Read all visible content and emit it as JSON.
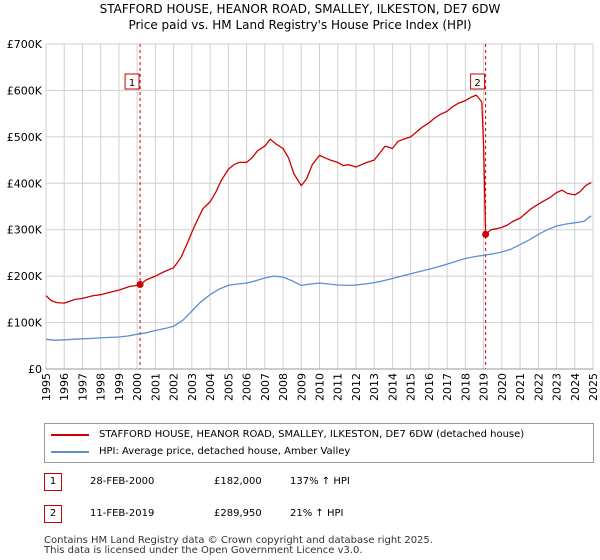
{
  "title_line1": "STAFFORD HOUSE, HEANOR ROAD, SMALLEY, ILKESTON, DE7 6DW",
  "title_line2": "Price paid vs. HM Land Registry's House Price Index (HPI)",
  "colors": {
    "property": "#cc0000",
    "hpi": "#5b8fd1",
    "grid": "#d0d0d0",
    "marker_line": "#cc0000"
  },
  "legend": {
    "property_label": "STAFFORD HOUSE, HEANOR ROAD, SMALLEY, ILKESTON, DE7 6DW (detached house)",
    "hpi_label": "HPI: Average price, detached house, Amber Valley"
  },
  "sales": [
    {
      "num": "1",
      "date": "28-FEB-2000",
      "price": "£182,000",
      "hpi": "137% ↑ HPI"
    },
    {
      "num": "2",
      "date": "11-FEB-2019",
      "price": "£289,950",
      "hpi": "21% ↑ HPI"
    }
  ],
  "footer": {
    "line1": "Contains HM Land Registry data © Crown copyright and database right 2025.",
    "line2": "This data is licensed under the Open Government Licence v3.0."
  },
  "chart_data": {
    "type": "line",
    "title": "STAFFORD HOUSE, HEANOR ROAD, SMALLEY, ILKESTON, DE7 6DW — Price paid vs. HM Land Registry's House Price Index (HPI)",
    "xlabel": "",
    "ylabel": "",
    "xlim": [
      1995,
      2025
    ],
    "ylim": [
      0,
      700000
    ],
    "y_ticks": [
      0,
      100000,
      200000,
      300000,
      400000,
      500000,
      600000,
      700000
    ],
    "y_tick_labels": [
      "£0",
      "£100K",
      "£200K",
      "£300K",
      "£400K",
      "£500K",
      "£600K",
      "£700K"
    ],
    "x_ticks": [
      1995,
      1996,
      1997,
      1998,
      1999,
      2000,
      2001,
      2002,
      2003,
      2004,
      2005,
      2006,
      2007,
      2008,
      2009,
      2010,
      2011,
      2012,
      2013,
      2014,
      2015,
      2016,
      2017,
      2018,
      2019,
      2020,
      2021,
      2022,
      2023,
      2024,
      2025
    ],
    "x_tick_labels": [
      "1995",
      "1996",
      "1997",
      "1998",
      "1999",
      "2000",
      "2001",
      "2002",
      "2003",
      "2004",
      "2005",
      "2006",
      "2007",
      "2008",
      "2009",
      "2010",
      "2011",
      "2012",
      "2013",
      "2014",
      "2015",
      "2016",
      "2017",
      "2018",
      "2019",
      "2020",
      "2021",
      "2022",
      "2023",
      "2024",
      "2025"
    ],
    "sale_markers": [
      {
        "label": "1",
        "x": 2000.16,
        "y": 182000
      },
      {
        "label": "2",
        "x": 2019.11,
        "y": 289950
      }
    ],
    "series": [
      {
        "name": "STAFFORD HOUSE, HEANOR ROAD, SMALLEY, ILKESTON, DE7 6DW (detached house)",
        "x": [
          1995.0,
          1995.3,
          1995.6,
          1996.0,
          1996.3,
          1996.6,
          1997.0,
          1997.3,
          1997.6,
          1998.0,
          1998.3,
          1998.6,
          1999.0,
          1999.3,
          1999.6,
          2000.0,
          2000.16,
          2000.5,
          2001.0,
          2001.5,
          2002.0,
          2002.4,
          2002.8,
          2003.0,
          2003.3,
          2003.6,
          2004.0,
          2004.3,
          2004.6,
          2005.0,
          2005.3,
          2005.6,
          2006.0,
          2006.3,
          2006.6,
          2007.0,
          2007.3,
          2007.6,
          2008.0,
          2008.3,
          2008.6,
          2009.0,
          2009.3,
          2009.6,
          2010.0,
          2010.3,
          2010.6,
          2011.0,
          2011.3,
          2011.6,
          2012.0,
          2012.3,
          2012.6,
          2013.0,
          2013.3,
          2013.6,
          2014.0,
          2014.3,
          2014.6,
          2015.0,
          2015.3,
          2015.6,
          2016.0,
          2016.3,
          2016.6,
          2017.0,
          2017.3,
          2017.6,
          2018.0,
          2018.3,
          2018.6,
          2018.9,
          2019.0,
          2019.11,
          2019.4,
          2019.7,
          2020.0,
          2020.3,
          2020.6,
          2021.0,
          2021.3,
          2021.6,
          2022.0,
          2022.3,
          2022.6,
          2023.0,
          2023.3,
          2023.6,
          2024.0,
          2024.3,
          2024.6,
          2024.9
        ],
        "values": [
          158000,
          147000,
          143000,
          142000,
          146000,
          150000,
          152000,
          155000,
          158000,
          160000,
          163000,
          166000,
          170000,
          174000,
          178000,
          180000,
          182000,
          192000,
          200000,
          210000,
          218000,
          240000,
          275000,
          295000,
          320000,
          345000,
          360000,
          380000,
          405000,
          430000,
          440000,
          445000,
          445000,
          455000,
          470000,
          480000,
          495000,
          485000,
          475000,
          455000,
          420000,
          395000,
          410000,
          440000,
          460000,
          455000,
          450000,
          445000,
          438000,
          440000,
          435000,
          440000,
          445000,
          450000,
          465000,
          480000,
          475000,
          490000,
          495000,
          500000,
          510000,
          520000,
          530000,
          540000,
          548000,
          555000,
          565000,
          572000,
          578000,
          585000,
          590000,
          575000,
          480000,
          289950,
          300000,
          302000,
          305000,
          310000,
          318000,
          325000,
          335000,
          345000,
          355000,
          362000,
          368000,
          380000,
          385000,
          378000,
          375000,
          382000,
          395000,
          402000
        ]
      },
      {
        "name": "HPI: Average price, detached house, Amber Valley",
        "x": [
          1995.0,
          1995.5,
          1996.0,
          1996.5,
          1997.0,
          1997.5,
          1998.0,
          1998.5,
          1999.0,
          1999.5,
          2000.0,
          2000.5,
          2001.0,
          2001.5,
          2002.0,
          2002.5,
          2003.0,
          2003.5,
          2004.0,
          2004.5,
          2005.0,
          2005.5,
          2006.0,
          2006.5,
          2007.0,
          2007.5,
          2008.0,
          2008.5,
          2009.0,
          2009.5,
          2010.0,
          2010.5,
          2011.0,
          2011.5,
          2012.0,
          2012.5,
          2013.0,
          2013.5,
          2014.0,
          2014.5,
          2015.0,
          2015.5,
          2016.0,
          2016.5,
          2017.0,
          2017.5,
          2018.0,
          2018.5,
          2019.0,
          2019.5,
          2020.0,
          2020.5,
          2021.0,
          2021.5,
          2022.0,
          2022.5,
          2023.0,
          2023.5,
          2024.0,
          2024.5,
          2024.9
        ],
        "values": [
          64000,
          62000,
          63000,
          64000,
          65000,
          66000,
          67000,
          68000,
          69000,
          71000,
          75000,
          78000,
          83000,
          87000,
          92000,
          105000,
          125000,
          145000,
          160000,
          172000,
          180000,
          183000,
          185000,
          190000,
          196000,
          200000,
          198000,
          190000,
          180000,
          183000,
          185000,
          183000,
          181000,
          180000,
          181000,
          183000,
          186000,
          190000,
          195000,
          200000,
          205000,
          210000,
          215000,
          220000,
          226000,
          232000,
          238000,
          242000,
          245000,
          248000,
          252000,
          258000,
          268000,
          278000,
          290000,
          300000,
          308000,
          312000,
          315000,
          318000,
          330000
        ]
      }
    ]
  }
}
